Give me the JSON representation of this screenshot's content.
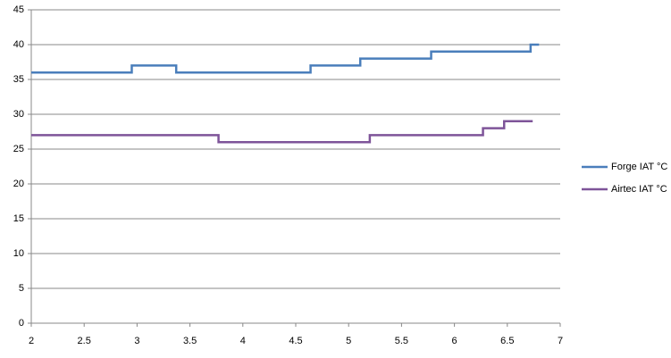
{
  "chart_data": {
    "type": "line",
    "series": [
      {
        "name": "Forge IAT °C",
        "color": "#4a7ebb",
        "x": [
          2,
          2.95,
          2.95,
          3.37,
          3.37,
          4.64,
          4.64,
          5.11,
          5.11,
          5.78,
          5.78,
          6.72,
          6.72,
          6.8
        ],
        "values": [
          36,
          36,
          37,
          37,
          36,
          36,
          37,
          37,
          38,
          38,
          39,
          39,
          40,
          40
        ]
      },
      {
        "name": "Airtec IAT °C",
        "color": "#7e5499",
        "x": [
          2,
          3.77,
          3.77,
          5.2,
          5.2,
          6.27,
          6.27,
          6.47,
          6.47,
          6.74
        ],
        "values": [
          27,
          27,
          26,
          26,
          27,
          27,
          28,
          28,
          29,
          29
        ]
      }
    ],
    "xlim": [
      2,
      7
    ],
    "xticks": [
      2,
      2.5,
      3,
      3.5,
      4,
      4.5,
      5,
      5.5,
      6,
      6.5,
      7
    ],
    "ylim": [
      0,
      45
    ],
    "yticks": [
      0,
      5,
      10,
      15,
      20,
      25,
      30,
      35,
      40,
      45
    ],
    "grid": true,
    "legend": "right"
  }
}
